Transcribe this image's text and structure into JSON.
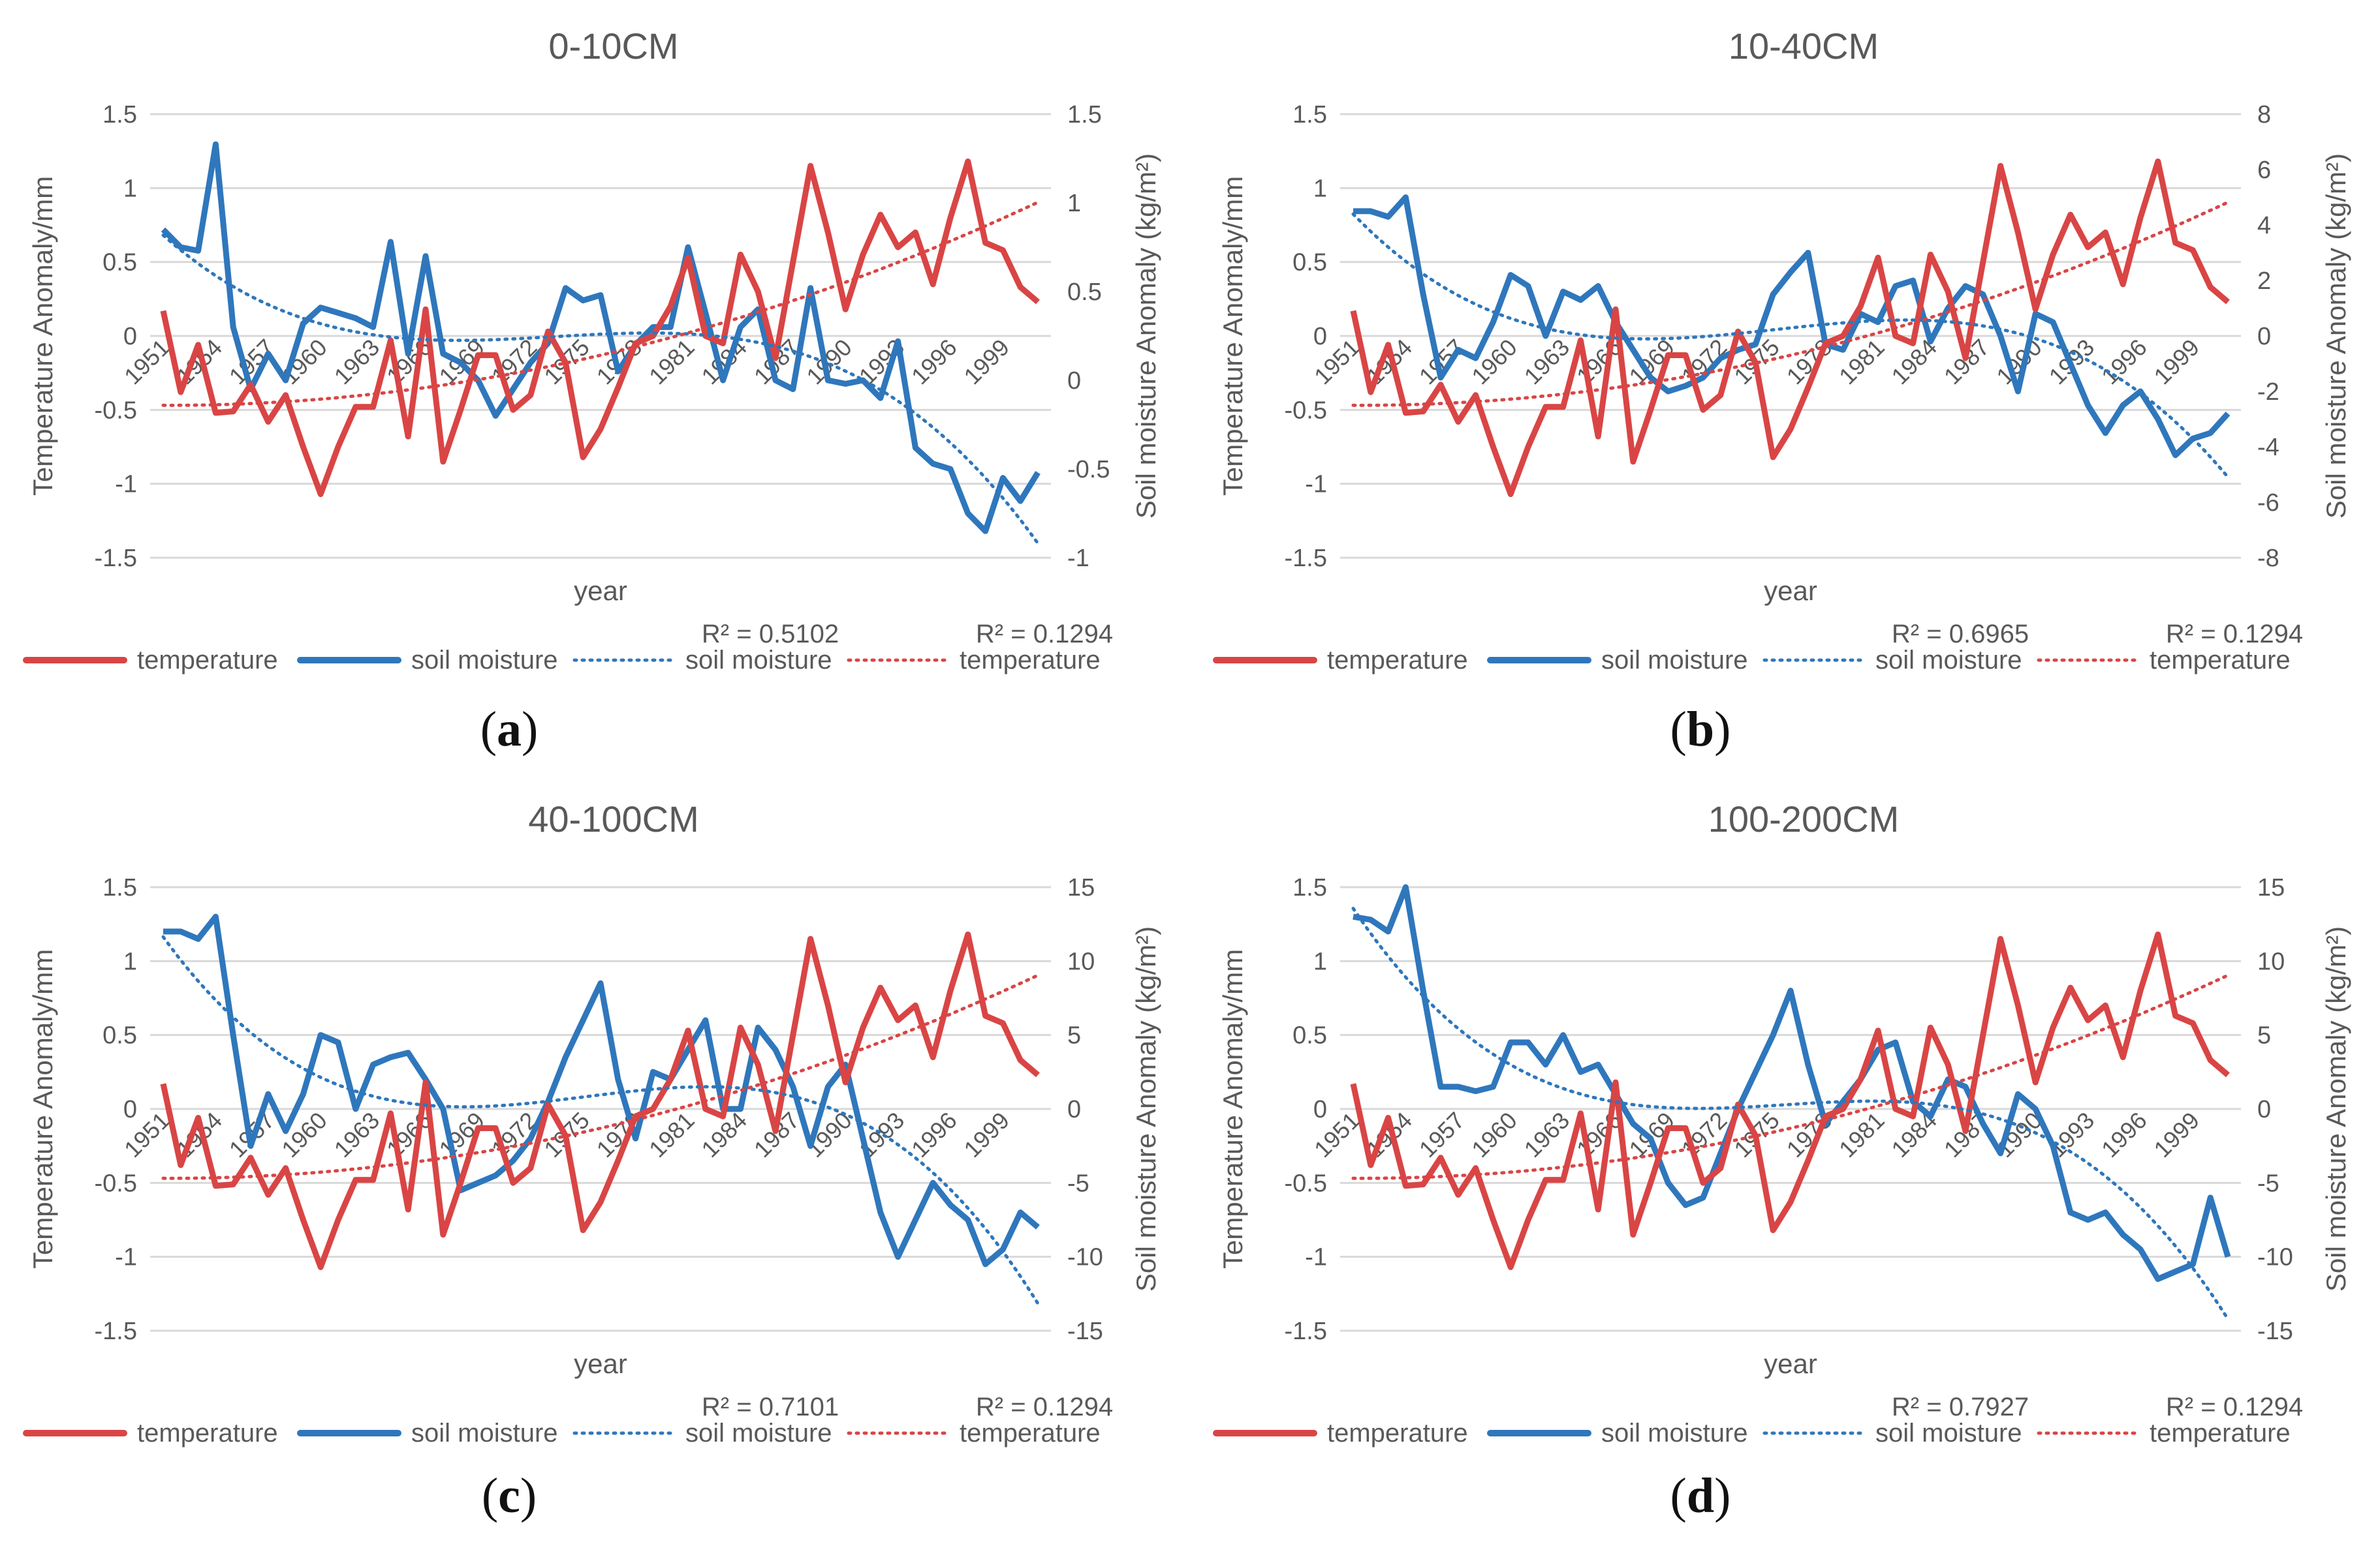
{
  "temperature_values": [
    0.17,
    -0.38,
    -0.06,
    -0.52,
    -0.51,
    -0.33,
    -0.58,
    -0.4,
    -0.75,
    -1.07,
    -0.75,
    -0.48,
    -0.48,
    -0.03,
    -0.68,
    0.18,
    -0.85,
    -0.5,
    -0.13,
    -0.13,
    -0.5,
    -0.4,
    0.03,
    -0.18,
    -0.82,
    -0.63,
    -0.35,
    -0.05,
    0.0,
    0.2,
    0.53,
    0.0,
    -0.05,
    0.55,
    0.3,
    -0.15,
    0.5,
    1.15,
    0.7,
    0.18,
    0.55,
    0.82,
    0.6,
    0.7,
    0.35,
    0.8,
    1.18,
    0.63,
    0.58,
    0.33,
    0.23
  ],
  "colors": {
    "temperature": "#d94545",
    "soil": "#2f77bc",
    "axis_text": "#595959",
    "grid": "#d9d9d9",
    "title": "#595959"
  },
  "chart_data": [
    {
      "panel": "a",
      "type": "line",
      "title": "0-10CM",
      "panel_label": "a",
      "xlabel": "year",
      "ylabel_left": "Temperature Anomaly/mm",
      "ylabel_right": "Soil moisture Anomaly (kg/m²)",
      "x_start": 1951,
      "x_end": 2001,
      "x_ticks": [
        "1951",
        "1954",
        "1957",
        "1960",
        "1963",
        "1966",
        "1969",
        "1972",
        "1975",
        "1978",
        "1981",
        "1984",
        "1987",
        "1990",
        "1993",
        "1996",
        "1999"
      ],
      "ylim_left": [
        -1.5,
        1.5
      ],
      "yticks_left": [
        "1.5",
        "1",
        "0.5",
        "0",
        "-0.5",
        "-1",
        "-1.5"
      ],
      "ylim_right": [
        -1,
        1.5
      ],
      "yticks_right": [
        "1.5",
        "1",
        "0.5",
        "0",
        "-0.5",
        "-1"
      ],
      "soil_values": [
        0.85,
        0.75,
        0.73,
        1.33,
        0.3,
        -0.05,
        0.15,
        0.0,
        0.32,
        0.41,
        0.38,
        0.35,
        0.3,
        0.78,
        0.15,
        0.7,
        0.15,
        0.1,
        0.0,
        -0.2,
        -0.05,
        0.1,
        0.21,
        0.52,
        0.45,
        0.48,
        0.05,
        0.2,
        0.3,
        0.3,
        0.75,
        0.38,
        0.0,
        0.3,
        0.4,
        0.0,
        -0.05,
        0.52,
        0.0,
        -0.02,
        0.0,
        -0.1,
        0.22,
        -0.38,
        -0.47,
        -0.5,
        -0.75,
        -0.85,
        -0.55,
        -0.68,
        -0.52
      ],
      "soil_trend_r2": "R² = 0.5102",
      "temp_trend_r2": "R² = 0.1294",
      "legend": [
        "temperature",
        "soil moisture",
        "soil moisture",
        "temperature"
      ]
    },
    {
      "panel": "b",
      "type": "line",
      "title": "10-40CM",
      "panel_label": "b",
      "xlabel": "year",
      "ylabel_left": "Temperature Anomaly/mm",
      "ylabel_right": "Soil moisture Anomaly (kg/m²)",
      "x_start": 1951,
      "x_end": 2001,
      "x_ticks": [
        "1951",
        "1954",
        "1957",
        "1960",
        "1963",
        "1966",
        "1969",
        "1972",
        "1975",
        "1978",
        "1981",
        "1984",
        "1987",
        "1990",
        "1993",
        "1996",
        "1999"
      ],
      "ylim_left": [
        -1.5,
        1.5
      ],
      "yticks_left": [
        "1.5",
        "1",
        "0.5",
        "0",
        "-0.5",
        "-1",
        "-1.5"
      ],
      "ylim_right": [
        -8,
        8
      ],
      "yticks_right": [
        "8",
        "6",
        "4",
        "2",
        "0",
        "-2",
        "-4",
        "-6",
        "-8"
      ],
      "soil_values": [
        4.5,
        4.5,
        4.3,
        5.0,
        1.5,
        -1.5,
        -0.5,
        -0.8,
        0.5,
        2.2,
        1.8,
        0.0,
        1.6,
        1.3,
        1.8,
        0.5,
        -0.5,
        -1.5,
        -2.0,
        -1.8,
        -1.5,
        -0.8,
        -0.5,
        -0.3,
        1.5,
        2.3,
        3.0,
        -0.3,
        -0.5,
        0.8,
        0.5,
        1.8,
        2.0,
        -0.2,
        1.0,
        1.8,
        1.5,
        0.0,
        -2.0,
        0.8,
        0.5,
        -1.0,
        -2.5,
        -3.5,
        -2.5,
        -2.0,
        -3.0,
        -4.3,
        -3.7,
        -3.5,
        -2.8
      ],
      "soil_trend_r2": "R² = 0.6965",
      "temp_trend_r2": "R² = 0.1294",
      "legend": [
        "temperature",
        "soil moisture",
        "soil moisture",
        "temperature"
      ]
    },
    {
      "panel": "c",
      "type": "line",
      "title": "40-100CM",
      "panel_label": "c",
      "xlabel": "year",
      "ylabel_left": "Temperature Anomaly/mm",
      "ylabel_right": "Soil moisture Anomaly (kg/m²)",
      "x_start": 1951,
      "x_end": 2001,
      "x_ticks": [
        "1951",
        "1954",
        "1957",
        "1960",
        "1963",
        "1966",
        "1969",
        "1972",
        "1975",
        "1978",
        "1981",
        "1984",
        "1987",
        "1990",
        "1993",
        "1996",
        "1999"
      ],
      "ylim_left": [
        -1.5,
        1.5
      ],
      "yticks_left": [
        "1.5",
        "1",
        "0.5",
        "0",
        "-0.5",
        "-1",
        "-1.5"
      ],
      "ylim_right": [
        -15,
        15
      ],
      "yticks_right": [
        "15",
        "10",
        "5",
        "0",
        "-5",
        "-10",
        "-15"
      ],
      "soil_values": [
        12.0,
        12.0,
        11.5,
        13.0,
        5.0,
        -2.5,
        1.0,
        -1.5,
        1.0,
        5.0,
        4.5,
        0.0,
        3.0,
        3.5,
        3.8,
        2.0,
        0.0,
        -5.5,
        -5.0,
        -4.5,
        -3.5,
        -2.0,
        0.5,
        3.5,
        6.0,
        8.5,
        2.0,
        -2.0,
        2.5,
        2.0,
        4.0,
        6.0,
        0.0,
        0.0,
        5.5,
        4.0,
        1.5,
        -2.5,
        1.5,
        3.0,
        -2.0,
        -7.0,
        -10.0,
        -7.5,
        -5.0,
        -6.5,
        -7.5,
        -10.5,
        -9.5,
        -7.0,
        -8.0
      ],
      "soil_trend_r2": "R² = 0.7101",
      "temp_trend_r2": "R² = 0.1294",
      "legend": [
        "temperature",
        "soil moisture",
        "soil moisture",
        "temperature"
      ]
    },
    {
      "panel": "d",
      "type": "line",
      "title": "100-200CM",
      "panel_label": "d",
      "xlabel": "year",
      "ylabel_left": "Temperature Anomaly/mm",
      "ylabel_right": "Soil moisture Anomaly (kg/m²)",
      "x_start": 1951,
      "x_end": 2001,
      "x_ticks": [
        "1951",
        "1954",
        "1957",
        "1960",
        "1963",
        "1966",
        "1969",
        "1972",
        "1975",
        "1978",
        "1981",
        "1984",
        "1987",
        "1990",
        "1993",
        "1996",
        "1999"
      ],
      "ylim_left": [
        -1.5,
        1.5
      ],
      "yticks_left": [
        "1.5",
        "1",
        "0.5",
        "0",
        "-0.5",
        "-1",
        "-1.5"
      ],
      "ylim_right": [
        -15,
        15
      ],
      "yticks_right": [
        "15",
        "10",
        "5",
        "0",
        "-5",
        "-10",
        "-15"
      ],
      "soil_values": [
        13.0,
        12.8,
        12.0,
        15.0,
        8.0,
        1.5,
        1.5,
        1.2,
        1.5,
        4.5,
        4.5,
        3.0,
        5.0,
        2.5,
        3.0,
        1.0,
        -1.0,
        -2.0,
        -5.0,
        -6.5,
        -6.0,
        -3.0,
        0.0,
        2.5,
        5.0,
        8.0,
        3.0,
        -1.0,
        0.5,
        2.0,
        4.0,
        4.5,
        0.5,
        -0.5,
        2.0,
        1.5,
        -1.0,
        -3.0,
        1.0,
        0.0,
        -2.5,
        -7.0,
        -7.5,
        -7.0,
        -8.5,
        -9.5,
        -11.5,
        -11.0,
        -10.5,
        -6.0,
        -10.0
      ],
      "soil_trend_r2": "R² = 0.7927",
      "temp_trend_r2": "R² = 0.1294",
      "legend": [
        "temperature",
        "soil moisture",
        "soil moisture",
        "temperature"
      ]
    }
  ]
}
